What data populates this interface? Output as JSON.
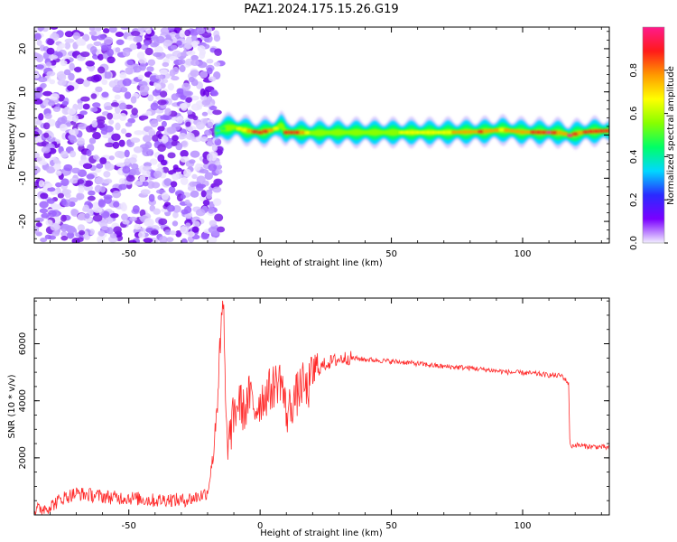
{
  "title": "PAZ1.2024.175.15.26.G19",
  "colors": {
    "snr_line": "#ff2a2a",
    "axis": "#000000",
    "noise_dots": "#7a1ee6"
  },
  "chart_data": [
    {
      "type": "heatmap",
      "xlabel": "Height of straight line (km)",
      "ylabel": "Frequency (Hz)",
      "xlim": [
        -86,
        133
      ],
      "ylim": [
        -25,
        25
      ],
      "x_ticks": [
        "-50",
        "0",
        "50",
        "100"
      ],
      "x_tick_values": [
        -50,
        0,
        50,
        100
      ],
      "y_ticks": [
        "-20",
        "-10",
        "0",
        "10",
        "20"
      ],
      "y_tick_values": [
        -20,
        -10,
        0,
        10,
        20
      ],
      "noise_region_x": [
        -86,
        -17
      ],
      "signal_band": {
        "x": [
          -17,
          -14,
          -10,
          -5,
          0,
          5,
          8,
          10,
          15,
          20,
          30,
          50,
          70,
          85,
          92,
          100,
          110,
          115,
          118,
          121,
          125,
          133
        ],
        "center_hz": [
          0.8,
          1.5,
          1.8,
          1.0,
          0.6,
          1.2,
          2.2,
          0.6,
          0.6,
          0.5,
          0.6,
          0.6,
          0.6,
          0.8,
          1.2,
          0.7,
          0.6,
          0.5,
          -0.1,
          0.4,
          0.8,
          1.0
        ],
        "amplitude": [
          0.35,
          0.45,
          0.55,
          0.75,
          0.9,
          0.75,
          0.6,
          0.85,
          0.85,
          0.6,
          0.55,
          0.6,
          0.7,
          0.85,
          0.7,
          0.8,
          0.95,
          0.7,
          0.95,
          0.8,
          0.85,
          0.9
        ]
      },
      "colorbar": {
        "label": "Normalized spectral amplitude",
        "range": [
          0,
          1
        ],
        "ticks": [
          "0.0",
          "0.2",
          "0.4",
          "0.6",
          "0.8"
        ],
        "tick_values": [
          0,
          0.2,
          0.4,
          0.6,
          0.8
        ],
        "gradient": [
          "#f2eeff",
          "#7a00ff",
          "#2a2aff",
          "#00d8ff",
          "#00ff66",
          "#88ff00",
          "#ffff00",
          "#ff9a00",
          "#ff1a1a",
          "#ff1a8c"
        ]
      }
    },
    {
      "type": "line",
      "xlabel": "Height of straight line (km)",
      "ylabel": "SNR (10 * v/v)",
      "xlim": [
        -86,
        133
      ],
      "ylim": [
        0,
        7600
      ],
      "x_ticks": [
        "-50",
        "0",
        "50",
        "100"
      ],
      "x_tick_values": [
        -50,
        0,
        50,
        100
      ],
      "y_ticks": [
        "2000",
        "4000",
        "6000"
      ],
      "y_tick_values": [
        2000,
        4000,
        6000
      ],
      "series": [
        {
          "x": [
            -86,
            -80,
            -75,
            -70,
            -65,
            -60,
            -55,
            -50,
            -45,
            -40,
            -35,
            -30,
            -25,
            -22,
            -20,
            -18,
            -16,
            -14,
            -13,
            -12,
            -10,
            -8,
            -6,
            -4,
            -2,
            0,
            2,
            4,
            6,
            8,
            10,
            12,
            14,
            16,
            18,
            20,
            22,
            25,
            28,
            30,
            32,
            35,
            40,
            45,
            50,
            55,
            60,
            65,
            70,
            75,
            80,
            85,
            90,
            95,
            100,
            105,
            110,
            115,
            117.5,
            118,
            120,
            125,
            130,
            133
          ],
          "values": [
            150,
            300,
            600,
            750,
            700,
            650,
            600,
            600,
            550,
            500,
            550,
            500,
            600,
            700,
            800,
            2000,
            4500,
            7600,
            3000,
            2500,
            3500,
            4000,
            3600,
            4200,
            3700,
            4000,
            4200,
            4400,
            4600,
            4800,
            3500,
            3900,
            4200,
            4600,
            4300,
            5000,
            5100,
            5300,
            5400,
            5450,
            5500,
            5500,
            5450,
            5420,
            5380,
            5350,
            5300,
            5250,
            5200,
            5180,
            5150,
            5100,
            5050,
            5000,
            4980,
            4950,
            4900,
            4880,
            4600,
            2400,
            2450,
            2400,
            2380,
            2350
          ],
          "color": "#ff2a2a"
        }
      ]
    }
  ]
}
